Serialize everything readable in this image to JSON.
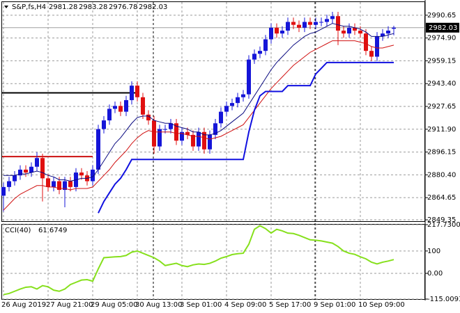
{
  "chart_data": [
    {
      "type": "candlestick",
      "symbol": "S&P,fs,H4",
      "categories": [
        "26 Aug 2019",
        null,
        null,
        null,
        null,
        null,
        null,
        null,
        "27 Aug 21:00",
        null,
        null,
        null,
        null,
        null,
        null,
        null,
        "29 Aug 05:00",
        null,
        null,
        null,
        null,
        null,
        null,
        null,
        "30 Aug 13:00",
        null,
        null,
        null,
        null,
        null,
        null,
        null,
        "3 Sep 01:00",
        null,
        null,
        null,
        null,
        null,
        null,
        null,
        "4 Sep 09:00",
        null,
        null,
        null,
        null,
        null,
        null,
        null,
        "5 Sep 17:00",
        null,
        null,
        null,
        null,
        null,
        null,
        null,
        "9 Sep 01:00",
        null,
        null,
        null,
        null,
        null,
        null,
        null,
        "10 Sep 09:00",
        null,
        null,
        null,
        null,
        null,
        null
      ],
      "open": [
        2866,
        2872,
        2876,
        2880,
        2884,
        2882,
        2886,
        2892,
        2878,
        2872,
        2876,
        2870,
        2876,
        2872,
        2882,
        2880,
        2876,
        2884,
        2912,
        2918,
        2926,
        2928,
        2924,
        2932,
        2942,
        2934,
        2922,
        2918,
        2900,
        2912,
        2912,
        2916,
        2904,
        2910,
        2908,
        2900,
        2910,
        2898,
        2908,
        2916,
        2924,
        2928,
        2930,
        2934,
        2936,
        2960,
        2964,
        2966,
        2974,
        2982,
        2978,
        2980,
        2986,
        2984,
        2982,
        2986,
        2984,
        2986,
        2986,
        2988,
        2990,
        2980,
        2978,
        2982,
        2980,
        2978,
        2966,
        2962,
        2976,
        2978,
        2981.28
      ],
      "high": [
        2875,
        2879,
        2883,
        2887,
        2887,
        2889,
        2896,
        2895,
        2881,
        2879,
        2879,
        2879,
        2879,
        2885,
        2885,
        2883,
        2887,
        2915,
        2921,
        2929,
        2931,
        2931,
        2935,
        2945,
        2945,
        2937,
        2925,
        2921,
        2915,
        2915,
        2919,
        2919,
        2913,
        2913,
        2911,
        2913,
        2913,
        2911,
        2919,
        2927,
        2931,
        2933,
        2937,
        2939,
        2963,
        2967,
        2969,
        2977,
        2985,
        2985,
        2983,
        2989,
        2989,
        2987,
        2989,
        2989,
        2989,
        2989,
        2991,
        2993,
        2993,
        2983,
        2985,
        2985,
        2983,
        2981,
        2969,
        2979,
        2981,
        2983,
        2983.28
      ],
      "low": [
        2855,
        2869,
        2873,
        2877,
        2879,
        2879,
        2883,
        2862,
        2869,
        2869,
        2867,
        2858,
        2869,
        2869,
        2877,
        2873,
        2873,
        2881,
        2909,
        2915,
        2923,
        2921,
        2921,
        2929,
        2931,
        2919,
        2915,
        2895,
        2897,
        2909,
        2909,
        2901,
        2901,
        2905,
        2897,
        2897,
        2895,
        2895,
        2905,
        2913,
        2921,
        2925,
        2927,
        2931,
        2933,
        2957,
        2961,
        2963,
        2971,
        2975,
        2975,
        2977,
        2981,
        2979,
        2979,
        2981,
        2981,
        2983,
        2983,
        2985,
        2970,
        2975,
        2975,
        2977,
        2975,
        2963,
        2959,
        2959,
        2973,
        2975,
        2976.78
      ],
      "close": [
        2872,
        2876,
        2880,
        2884,
        2882,
        2886,
        2892,
        2878,
        2872,
        2876,
        2870,
        2876,
        2872,
        2882,
        2880,
        2876,
        2884,
        2912,
        2918,
        2926,
        2928,
        2924,
        2932,
        2942,
        2934,
        2922,
        2918,
        2900,
        2912,
        2912,
        2916,
        2904,
        2910,
        2908,
        2900,
        2910,
        2898,
        2908,
        2916,
        2924,
        2928,
        2930,
        2934,
        2936,
        2960,
        2964,
        2966,
        2974,
        2982,
        2978,
        2980,
        2986,
        2984,
        2982,
        2986,
        2984,
        2986,
        2986,
        2988,
        2990,
        2980,
        2978,
        2982,
        2980,
        2978,
        2966,
        2962,
        2976,
        2978,
        2980,
        2982.03
      ],
      "up_color": "#1515d8",
      "down_color": "#e01010",
      "lines": [
        {
          "color": "#0a0a80",
          "width": 1,
          "values": [
            2880,
            2880,
            2880,
            2881,
            2881,
            2882,
            2883,
            2882,
            2880,
            2879,
            2877,
            2877,
            2876,
            2877,
            2878,
            2878,
            2879,
            2884,
            2890,
            2896,
            2902,
            2906,
            2911,
            2916,
            2920,
            2921,
            2921,
            2918,
            2917,
            2916,
            2916,
            2914,
            2913,
            2912,
            2910,
            2910,
            2908,
            2908,
            2909,
            2911,
            2914,
            2917,
            2920,
            2923,
            2929,
            2935,
            2941,
            2947,
            2953,
            2958,
            2962,
            2966,
            2970,
            2973,
            2976,
            2978,
            2979,
            2981,
            2983,
            2985,
            2984,
            2983,
            2983,
            2982,
            2981,
            2979,
            2976,
            2976,
            2976,
            2977,
            2978
          ]
        },
        {
          "color": "#d01010",
          "width": 1,
          "values": [
            2856,
            2860,
            2864,
            2867,
            2869,
            2871,
            2873,
            2873,
            2872,
            2872,
            2871,
            2871,
            2870,
            2871,
            2871,
            2871,
            2872,
            2876,
            2880,
            2884,
            2889,
            2893,
            2897,
            2902,
            2906,
            2909,
            2911,
            2910,
            2910,
            2910,
            2910,
            2909,
            2909,
            2908,
            2907,
            2907,
            2906,
            2905,
            2906,
            2907,
            2909,
            2911,
            2913,
            2915,
            2920,
            2925,
            2930,
            2935,
            2940,
            2944,
            2948,
            2952,
            2956,
            2959,
            2962,
            2965,
            2967,
            2969,
            2971,
            2973,
            2973,
            2973,
            2973,
            2973,
            2972,
            2971,
            2969,
            2968,
            2968,
            2969,
            2970
          ]
        },
        {
          "color": "#1010e0",
          "width": 2,
          "values": [
            null,
            null,
            null,
            null,
            null,
            null,
            null,
            null,
            null,
            null,
            null,
            null,
            null,
            null,
            null,
            null,
            null,
            2854,
            2862,
            2868,
            2874,
            2878,
            2884,
            2891,
            2891,
            2891,
            2891,
            2891,
            2891,
            2891,
            2891,
            2891,
            2891,
            2891,
            2891,
            2891,
            2891,
            2891,
            2891,
            2891,
            2891,
            2891,
            2891,
            2891,
            2910,
            2925,
            2935,
            2938,
            2938,
            2938,
            2938,
            2942,
            2942,
            2942,
            2942,
            2942,
            2950,
            2954,
            2958,
            2958,
            2958,
            2958,
            2958,
            2958,
            2958,
            2958,
            2958,
            2958,
            2958,
            2958,
            2958
          ]
        }
      ],
      "levels": [
        {
          "value": 2937,
          "color": "#000000",
          "end_index": 24
        },
        {
          "value": 2893,
          "color": "#cc1010",
          "end_index": 16
        }
      ],
      "ylim": [
        2848.4,
        2999.7
      ],
      "yticks": [
        2990.65,
        {
          "value": 2974.9,
          "label": "2974.90"
        },
        2959.15,
        {
          "value": 2943.4,
          "label": "2943.40"
        },
        2927.65,
        {
          "value": 2911.9,
          "label": "2911.90"
        },
        2896.15,
        {
          "value": 2880.4,
          "label": "2880.40"
        },
        2864.65,
        2849.35
      ],
      "grid": true
    },
    {
      "type": "line",
      "title": "CCI(40)",
      "color": "#86e01c",
      "values": [
        -95,
        -90,
        -80,
        -70,
        -62,
        -60,
        -70,
        -55,
        -60,
        -75,
        -80,
        -70,
        -50,
        -40,
        -30,
        -28,
        -35,
        20,
        70,
        72,
        74,
        75,
        80,
        95,
        100,
        90,
        80,
        70,
        55,
        35,
        40,
        45,
        35,
        30,
        38,
        42,
        40,
        45,
        55,
        68,
        75,
        84,
        88,
        90,
        130,
        197,
        213,
        200,
        180,
        197,
        190,
        180,
        178,
        170,
        160,
        150,
        148,
        145,
        140,
        135,
        120,
        100,
        90,
        85,
        74,
        65,
        50,
        42,
        50,
        55,
        61.6749
      ],
      "ylim": [
        -115.0093,
        217.73
      ],
      "yticks": [
        {
          "value": 217.73,
          "label": "217.7300"
        },
        100,
        {
          "value": 0,
          "label": "0.00"
        },
        {
          "value": -115.0093,
          "label": "-115.0093"
        }
      ],
      "grid": true
    }
  ]
}
